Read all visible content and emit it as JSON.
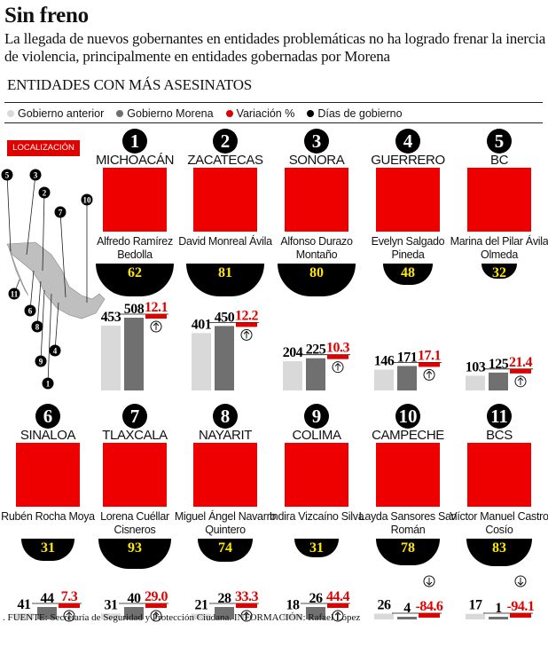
{
  "header": {
    "title": "Sin freno",
    "subtitle": "La llegada de nuevos gobernantes en entidades problemáticas no ha logrado frenar la inercia de violencia, principalmente en entidades gobernadas por Morena",
    "section": "ENTIDADES CON MÁS ASESINATOS"
  },
  "legend": [
    {
      "label": "Gobierno anterior",
      "color": "#d9d9d9"
    },
    {
      "label": "Gobierno Morena",
      "color": "#707070"
    },
    {
      "label": "Variación %",
      "color": "#e00000"
    },
    {
      "label": "Días de gobierno",
      "color": "#000000"
    }
  ],
  "map": {
    "label": "LOCALIZACIÓN",
    "markers": [
      "5",
      "3",
      "2",
      "10",
      "7",
      "11",
      "6",
      "8",
      "4",
      "9",
      "1"
    ]
  },
  "chart_data": {
    "type": "bar",
    "series": [
      {
        "name": "Gobierno anterior",
        "key": "anterior"
      },
      {
        "name": "Gobierno Morena",
        "key": "morena"
      },
      {
        "name": "Variación %",
        "key": "variacion"
      },
      {
        "name": "Días de gobierno",
        "key": "dias"
      }
    ],
    "entities": [
      {
        "rank": "1",
        "state": "MICHOACÁN",
        "governor": "Alfredo Ramírez Bedolla",
        "dias": "62",
        "anterior": 453,
        "morena": 508,
        "variacion": "12.1",
        "direction": "up"
      },
      {
        "rank": "2",
        "state": "ZACATECAS",
        "governor": "David Monreal Ávila",
        "dias": "81",
        "anterior": 401,
        "morena": 450,
        "variacion": "12.2",
        "direction": "up"
      },
      {
        "rank": "3",
        "state": "SONORA",
        "governor": "Alfonso Durazo Montaño",
        "dias": "80",
        "anterior": 204,
        "morena": 225,
        "variacion": "10.3",
        "direction": "up"
      },
      {
        "rank": "4",
        "state": "GUERRERO",
        "governor": "Evelyn Salgado Pineda",
        "dias": "48",
        "anterior": 146,
        "morena": 171,
        "variacion": "17.1",
        "direction": "up"
      },
      {
        "rank": "5",
        "state": "BC",
        "governor": "Marina del Pilar Ávila Olmeda",
        "dias": "32",
        "anterior": 103,
        "morena": 125,
        "variacion": "21.4",
        "direction": "up"
      },
      {
        "rank": "6",
        "state": "SINALOA",
        "governor": "Rubén Rocha Moya",
        "dias": "31",
        "anterior": 41,
        "morena": 44,
        "variacion": "7.3",
        "direction": "up"
      },
      {
        "rank": "7",
        "state": "TLAXCALA",
        "governor": "Lorena Cuéllar Cisneros",
        "dias": "93",
        "anterior": 31,
        "morena": 40,
        "variacion": "29.0",
        "direction": "up"
      },
      {
        "rank": "8",
        "state": "NAYARIT",
        "governor": "Miguel Ángel Navarro Quintero",
        "dias": "74",
        "anterior": 21,
        "morena": 28,
        "variacion": "33.3",
        "direction": "up"
      },
      {
        "rank": "9",
        "state": "COLIMA",
        "governor": "Indira Vizcaíno Silva",
        "dias": "31",
        "anterior": 18,
        "morena": 26,
        "variacion": "44.4",
        "direction": "up"
      },
      {
        "rank": "10",
        "state": "CAMPECHE",
        "governor": "Layda Sansores San Román",
        "dias": "78",
        "anterior": 26,
        "morena": 4,
        "variacion": "-84.6",
        "direction": "down"
      },
      {
        "rank": "11",
        "state": "BCS",
        "governor": "Víctor Manuel Castro Cosío",
        "dias": "83",
        "anterior": 17,
        "morena": 1,
        "variacion": "-94.1",
        "direction": "down"
      }
    ]
  },
  "footer": {
    "source": ". FUENTE: Secretaría de Seguridad y Protección Ciudana. INFORMACIÓN: Rafael López"
  }
}
